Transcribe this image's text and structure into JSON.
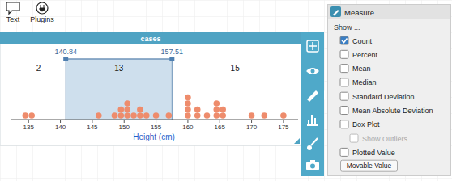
{
  "toolbar": {
    "buttons": [
      "Text",
      "Plugins"
    ]
  },
  "chart_data": {
    "type": "dot_plot",
    "title": "cases",
    "x_label": "Height (cm)",
    "x": [
      134.5,
      135.5,
      146,
      148.5,
      149.5,
      149.5,
      150.5,
      150.5,
      150.5,
      151.5,
      152.5,
      152.5,
      153.5,
      155,
      157,
      160,
      160,
      160,
      160,
      161.5,
      161.5,
      163,
      164.5,
      164.5,
      164.5,
      165.5,
      165.5,
      170,
      172,
      175
    ],
    "xlim": [
      132.3,
      177.3
    ],
    "xticks": [
      135,
      140,
      145,
      150,
      155,
      160,
      165,
      170,
      175
    ],
    "color": "#ee8c6c",
    "movable_values": [
      140.84,
      157.51
    ],
    "counts": [
      2,
      13,
      15
    ]
  },
  "measure_panel": {
    "title": "Measure",
    "subtitle": "Show ...",
    "options": [
      {
        "label": "Count",
        "checked": true,
        "enabled": true
      },
      {
        "label": "Percent",
        "checked": false,
        "enabled": true
      },
      {
        "label": "Mean",
        "checked": false,
        "enabled": true
      },
      {
        "label": "Median",
        "checked": false,
        "enabled": true
      },
      {
        "label": "Standard Deviation",
        "checked": false,
        "enabled": true
      },
      {
        "label": "Mean Absolute Deviation",
        "checked": false,
        "enabled": true
      },
      {
        "label": "Box Plot",
        "checked": false,
        "enabled": true
      },
      {
        "label": "Show Outliers",
        "checked": false,
        "enabled": false
      },
      {
        "label": "Plotted Value",
        "checked": false,
        "enabled": true
      }
    ],
    "button": "Movable Value"
  }
}
